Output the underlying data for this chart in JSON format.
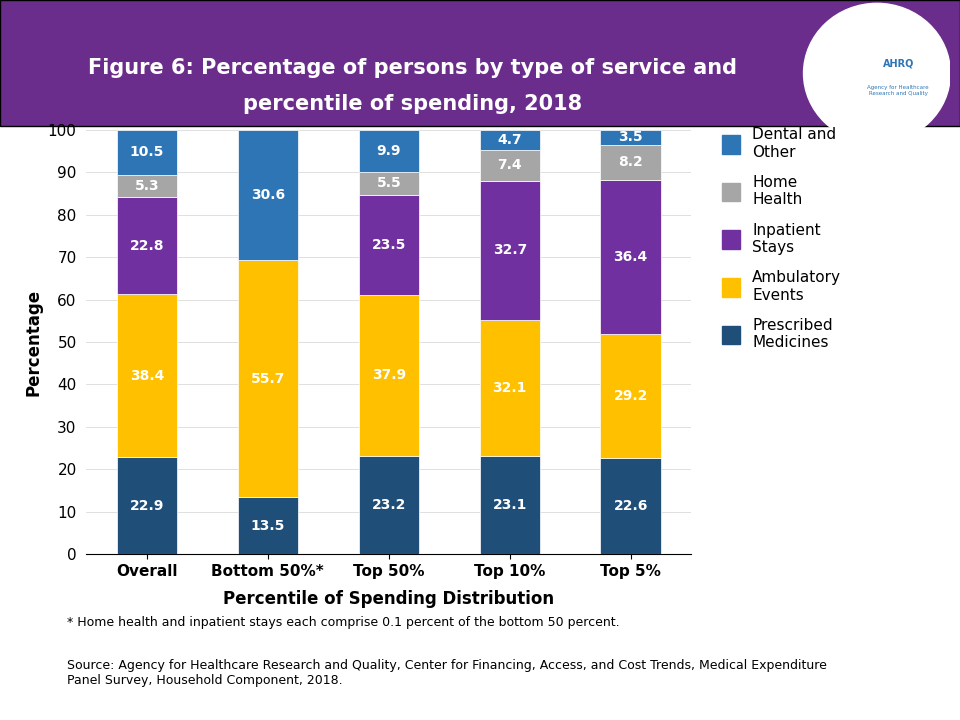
{
  "title_line1": "Figure 6: Percentage of persons by type of service and",
  "title_line2": "percentile of spending, 2018",
  "xlabel": "Percentile of Spending Distribution",
  "ylabel": "Percentage",
  "categories": [
    "Overall",
    "Bottom 50%*",
    "Top 50%",
    "Top 10%",
    "Top 5%"
  ],
  "series": {
    "Prescribed\nMedicines": [
      22.9,
      13.5,
      23.2,
      23.1,
      22.6
    ],
    "Ambulatory\nEvents": [
      38.4,
      55.7,
      37.9,
      32.1,
      29.2
    ],
    "Inpatient\nStays": [
      22.8,
      0.1,
      23.5,
      32.7,
      36.4
    ],
    "Home\nHealth": [
      5.3,
      0.1,
      5.5,
      7.4,
      8.2
    ],
    "Dental and\nOther": [
      10.5,
      30.6,
      9.9,
      4.7,
      3.5
    ]
  },
  "colors": {
    "Prescribed\nMedicines": "#1f4e79",
    "Ambulatory\nEvents": "#ffc000",
    "Inpatient\nStays": "#7030a0",
    "Home\nHealth": "#a6a6a6",
    "Dental and\nOther": "#2e75b6"
  },
  "bar_width": 0.5,
  "ylim": [
    0,
    100
  ],
  "yticks": [
    0,
    10,
    20,
    30,
    40,
    50,
    60,
    70,
    80,
    90,
    100
  ],
  "header_color": "#6b2d8b",
  "header_text_color": "#ffffff",
  "footnote1": "* Home health and inpatient stays each comprise 0.1 percent of the bottom 50 percent.",
  "footnote2": "Source: Agency for Healthcare Research and Quality, Center for Financing, Access, and Cost Trends, Medical Expenditure\nPanel Survey, Household Component, 2018.",
  "title_fontsize": 15,
  "axis_label_fontsize": 12,
  "tick_fontsize": 11,
  "bar_label_fontsize": 10,
  "legend_fontsize": 11,
  "footnote_fontsize": 9
}
